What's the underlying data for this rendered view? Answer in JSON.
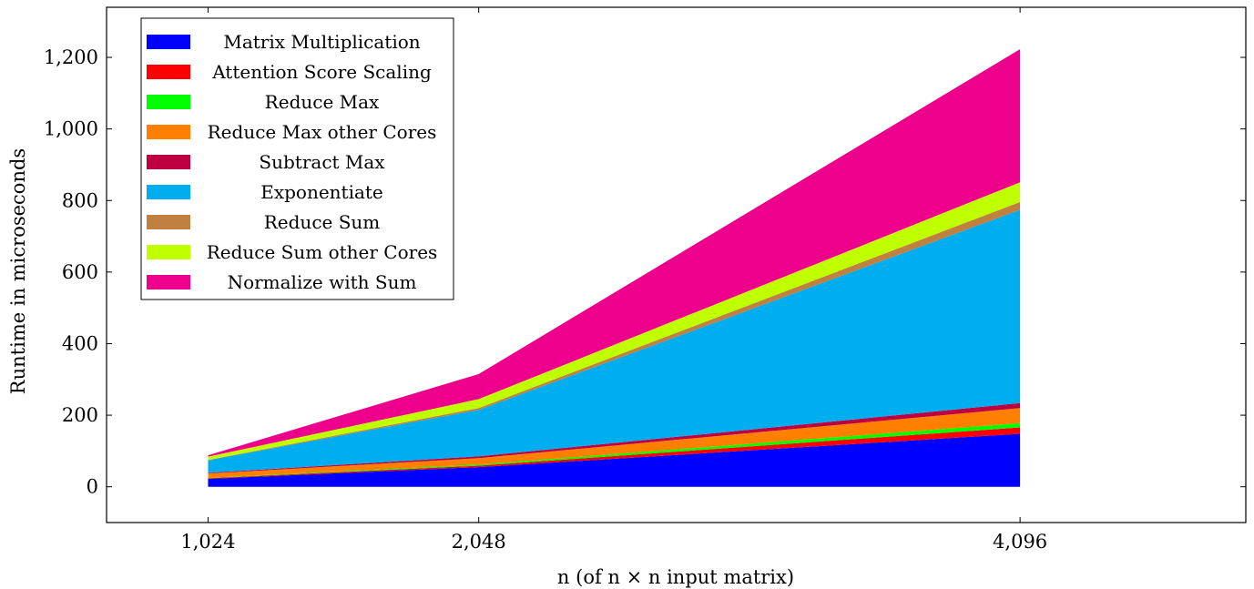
{
  "chart_data": {
    "type": "area",
    "stacked": true,
    "x": [
      1024,
      2048,
      4096
    ],
    "x_tick_labels": [
      "1,024",
      "2,048",
      "4,096"
    ],
    "y_ticks": [
      0,
      200,
      400,
      600,
      800,
      1000,
      1200
    ],
    "y_tick_labels": [
      "0",
      "200",
      "400",
      "600",
      "800",
      "1,000",
      "1,200"
    ],
    "xlim": [
      640,
      4950
    ],
    "ylim": [
      -100,
      1340
    ],
    "xlabel": "n (of n × n input matrix)",
    "ylabel": "Runtime in microseconds",
    "legend_position": "top-left",
    "grid": false,
    "series": [
      {
        "name": "Matrix Multiplication",
        "color": "#0000ff",
        "values": [
          22,
          55,
          148
        ]
      },
      {
        "name": "Attention Score Scaling",
        "color": "#ff0000",
        "values": [
          2,
          4,
          18
        ]
      },
      {
        "name": "Reduce Max",
        "color": "#00ff00",
        "values": [
          1,
          3,
          12
        ]
      },
      {
        "name": "Reduce Max other Cores",
        "color": "#ff8000",
        "values": [
          12,
          18,
          42
        ]
      },
      {
        "name": "Subtract Max",
        "color": "#bf0040",
        "values": [
          2,
          5,
          14
        ]
      },
      {
        "name": "Exponentiate",
        "color": "#00aeef",
        "values": [
          35,
          130,
          540
        ]
      },
      {
        "name": "Reduce Sum",
        "color": "#c08040",
        "values": [
          1,
          5,
          22
        ]
      },
      {
        "name": "Reduce Sum other Cores",
        "color": "#bfff00",
        "values": [
          9,
          25,
          55
        ]
      },
      {
        "name": "Normalize with Sum",
        "color": "#ec008c",
        "values": [
          4,
          70,
          372
        ]
      }
    ]
  }
}
